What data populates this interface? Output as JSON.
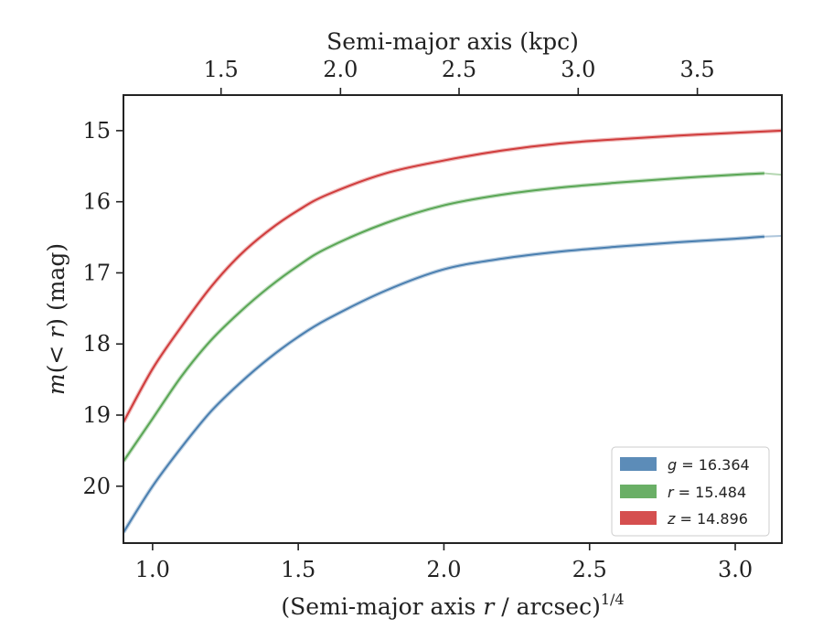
{
  "chart_data": {
    "type": "line",
    "title": "",
    "xlabel_main": "(Semi-major axis ",
    "xlabel_var": "r",
    "xlabel_tail": " / arcsec)",
    "xlabel_exp": "1/4",
    "ylabel_pre": "m",
    "ylabel_mid": "(< ",
    "ylabel_var": "r",
    "ylabel_post": ") (mag)",
    "top_xlabel": "Semi-major axis (kpc)",
    "xlim": [
      0.9,
      3.16
    ],
    "ylim": [
      20.8,
      14.5
    ],
    "y_inverted": true,
    "grid": false,
    "legend_position": "lower-right",
    "x_ticks": [
      "1.0",
      "1.5",
      "2.0",
      "2.5",
      "3.0"
    ],
    "x_tick_values": [
      1.0,
      1.5,
      2.0,
      2.5,
      3.0
    ],
    "y_ticks": [
      "15",
      "16",
      "17",
      "18",
      "19",
      "20"
    ],
    "y_tick_values": [
      15,
      16,
      17,
      18,
      19,
      20
    ],
    "top_ticks": [
      "1.5",
      "2.0",
      "2.5",
      "3.0",
      "3.5"
    ],
    "top_tick_values": [
      1.5,
      2.0,
      2.5,
      3.0,
      3.5
    ],
    "top_axis_x_positions": [
      1.235,
      1.645,
      2.052,
      2.461,
      2.87
    ],
    "series": [
      {
        "band": "g",
        "value": "16.364",
        "color": "#4a7fb0",
        "x": [
          0.9,
          1.0,
          1.1,
          1.2,
          1.3,
          1.4,
          1.5,
          1.6,
          1.8,
          2.0,
          2.2,
          2.4,
          2.6,
          2.8,
          3.0,
          3.1
        ],
        "y": [
          20.65,
          20.0,
          19.45,
          18.95,
          18.55,
          18.2,
          17.9,
          17.65,
          17.25,
          16.95,
          16.8,
          16.7,
          16.63,
          16.57,
          16.52,
          16.49
        ],
        "extension_x": [
          3.1,
          3.16
        ],
        "extension_y": [
          16.49,
          16.48
        ]
      },
      {
        "band": "r",
        "value": "15.484",
        "color": "#5aa655",
        "x": [
          0.9,
          1.0,
          1.1,
          1.2,
          1.3,
          1.4,
          1.5,
          1.6,
          1.8,
          2.0,
          2.2,
          2.4,
          2.6,
          2.8,
          3.0,
          3.1
        ],
        "y": [
          19.65,
          19.05,
          18.45,
          17.95,
          17.55,
          17.2,
          16.9,
          16.65,
          16.3,
          16.05,
          15.9,
          15.8,
          15.73,
          15.67,
          15.62,
          15.6
        ],
        "extension_x": [
          3.1,
          3.16
        ],
        "extension_y": [
          15.6,
          15.62
        ]
      },
      {
        "band": "z",
        "value": "14.896",
        "color": "#d03c3c",
        "x": [
          0.9,
          1.0,
          1.1,
          1.2,
          1.3,
          1.4,
          1.5,
          1.6,
          1.8,
          2.0,
          2.2,
          2.4,
          2.6,
          2.8,
          3.0,
          3.16
        ],
        "y": [
          19.1,
          18.35,
          17.75,
          17.2,
          16.75,
          16.4,
          16.12,
          15.9,
          15.6,
          15.42,
          15.28,
          15.18,
          15.12,
          15.07,
          15.03,
          15.0
        ],
        "extension_x": [],
        "extension_y": []
      }
    ]
  }
}
